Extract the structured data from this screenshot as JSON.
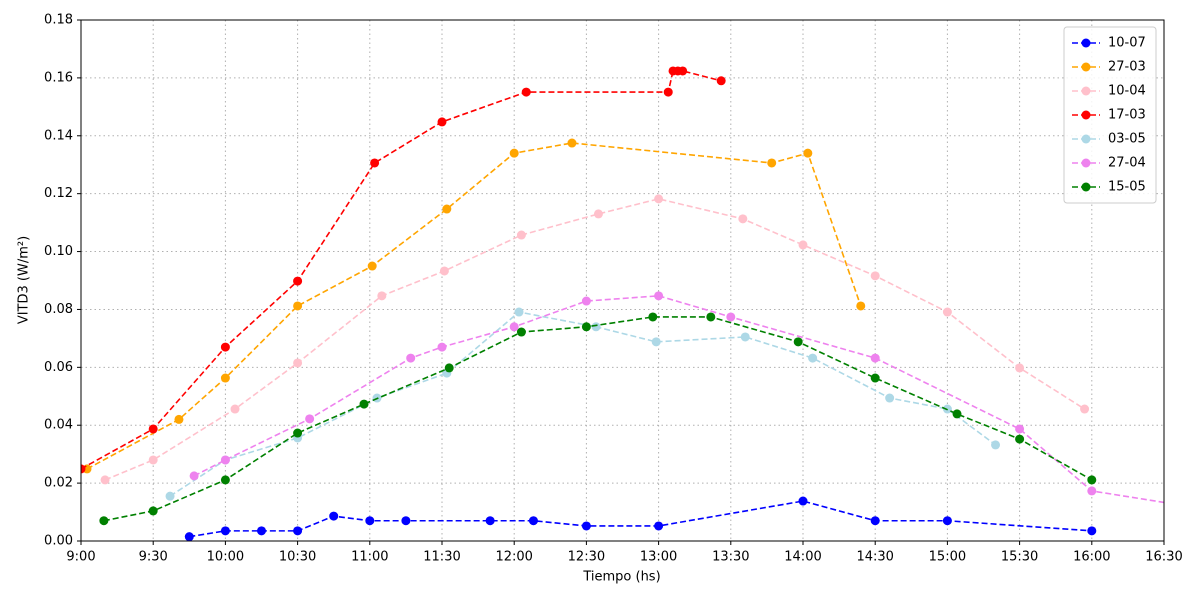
{
  "chart_data": {
    "type": "line",
    "xlabel": "Tiempo (hs)",
    "ylabel": "VITD3 (W/m²)",
    "xlim": [
      540,
      990
    ],
    "ylim": [
      0,
      0.18
    ],
    "xticks": [
      {
        "value": 540,
        "label": "9:00"
      },
      {
        "value": 570,
        "label": "9:30"
      },
      {
        "value": 600,
        "label": "10:00"
      },
      {
        "value": 630,
        "label": "10:30"
      },
      {
        "value": 660,
        "label": "11:00"
      },
      {
        "value": 690,
        "label": "11:30"
      },
      {
        "value": 720,
        "label": "12:00"
      },
      {
        "value": 750,
        "label": "12:30"
      },
      {
        "value": 780,
        "label": "13:00"
      },
      {
        "value": 810,
        "label": "13:30"
      },
      {
        "value": 840,
        "label": "14:00"
      },
      {
        "value": 870,
        "label": "14:30"
      },
      {
        "value": 900,
        "label": "15:00"
      },
      {
        "value": 930,
        "label": "15:30"
      },
      {
        "value": 960,
        "label": "16:00"
      },
      {
        "value": 990,
        "label": "16:30"
      }
    ],
    "yticks": [
      {
        "value": 0,
        "label": "0.00"
      },
      {
        "value": 0.02,
        "label": "0.02"
      },
      {
        "value": 0.04,
        "label": "0.04"
      },
      {
        "value": 0.06,
        "label": "0.06"
      },
      {
        "value": 0.08,
        "label": "0.08"
      },
      {
        "value": 0.1,
        "label": "0.10"
      },
      {
        "value": 0.12,
        "label": "0.12"
      },
      {
        "value": 0.14,
        "label": "0.14"
      },
      {
        "value": 0.16,
        "label": "0.16"
      },
      {
        "value": 0.18,
        "label": "0.18"
      }
    ],
    "grid": true,
    "legend": "upper right",
    "series": [
      {
        "name": "10-07",
        "color": "#0000ff",
        "x": [
          585,
          600,
          615,
          630,
          645,
          660,
          675,
          710,
          728,
          750,
          780,
          840,
          870,
          900,
          960
        ],
        "values": [
          0.0015,
          0.0035,
          0.0035,
          0.0035,
          0.0086,
          0.007,
          0.007,
          0.007,
          0.007,
          0.0052,
          0.0052,
          0.0138,
          0.007,
          0.007,
          0.0035
        ]
      },
      {
        "name": "27-03",
        "color": "#ffa500",
        "x": [
          542.5,
          580.7,
          600,
          630,
          661,
          692,
          720,
          744,
          827,
          842,
          864
        ],
        "values": [
          0.0249,
          0.042,
          0.0563,
          0.0812,
          0.095,
          0.1147,
          0.134,
          0.1375,
          0.1306,
          0.134,
          0.0812
        ]
      },
      {
        "name": "10-04",
        "color": "#ffc0cb",
        "x": [
          550,
          570,
          604,
          630,
          665,
          691,
          723,
          755,
          780,
          815,
          840,
          870,
          900,
          930,
          957
        ],
        "values": [
          0.0211,
          0.028,
          0.0456,
          0.0615,
          0.0847,
          0.0933,
          0.1057,
          0.113,
          0.1182,
          0.1113,
          0.1023,
          0.0916,
          0.0791,
          0.0598,
          0.0456
        ]
      },
      {
        "name": "17-03",
        "color": "#ff0000",
        "x": [
          540,
          570,
          600,
          630,
          662,
          690,
          725,
          784,
          786,
          788,
          790,
          806
        ],
        "values": [
          0.0249,
          0.0387,
          0.067,
          0.0898,
          0.1306,
          0.1448,
          0.1551,
          0.1551,
          0.1624,
          0.1624,
          0.1624,
          0.159
        ]
      },
      {
        "name": "03-05",
        "color": "#add8e6",
        "x": [
          577,
          600,
          630,
          663,
          692,
          722,
          754,
          779,
          816,
          844,
          876,
          900,
          920
        ],
        "values": [
          0.0155,
          0.028,
          0.0356,
          0.0494,
          0.058,
          0.0791,
          0.074,
          0.0688,
          0.0705,
          0.0632,
          0.0494,
          0.0456,
          0.0332
        ]
      },
      {
        "name": "27-04",
        "color": "#ee82ee",
        "x": [
          587,
          600,
          635,
          677,
          690,
          720,
          750,
          780,
          810,
          870,
          930,
          960,
          1000
        ],
        "values": [
          0.0225,
          0.028,
          0.0422,
          0.0632,
          0.067,
          0.074,
          0.0829,
          0.0847,
          0.0774,
          0.0632,
          0.0387,
          0.0173,
          0.012
        ]
      },
      {
        "name": "15-05",
        "color": "#008000",
        "x": [
          549.5,
          570,
          600,
          630,
          657.6,
          693,
          723,
          750,
          777.6,
          801.7,
          838,
          870,
          904,
          930,
          960
        ],
        "values": [
          0.007,
          0.0104,
          0.0211,
          0.0373,
          0.0473,
          0.0598,
          0.0722,
          0.074,
          0.0774,
          0.0774,
          0.0688,
          0.0563,
          0.0439,
          0.0352,
          0.0211
        ]
      }
    ]
  }
}
